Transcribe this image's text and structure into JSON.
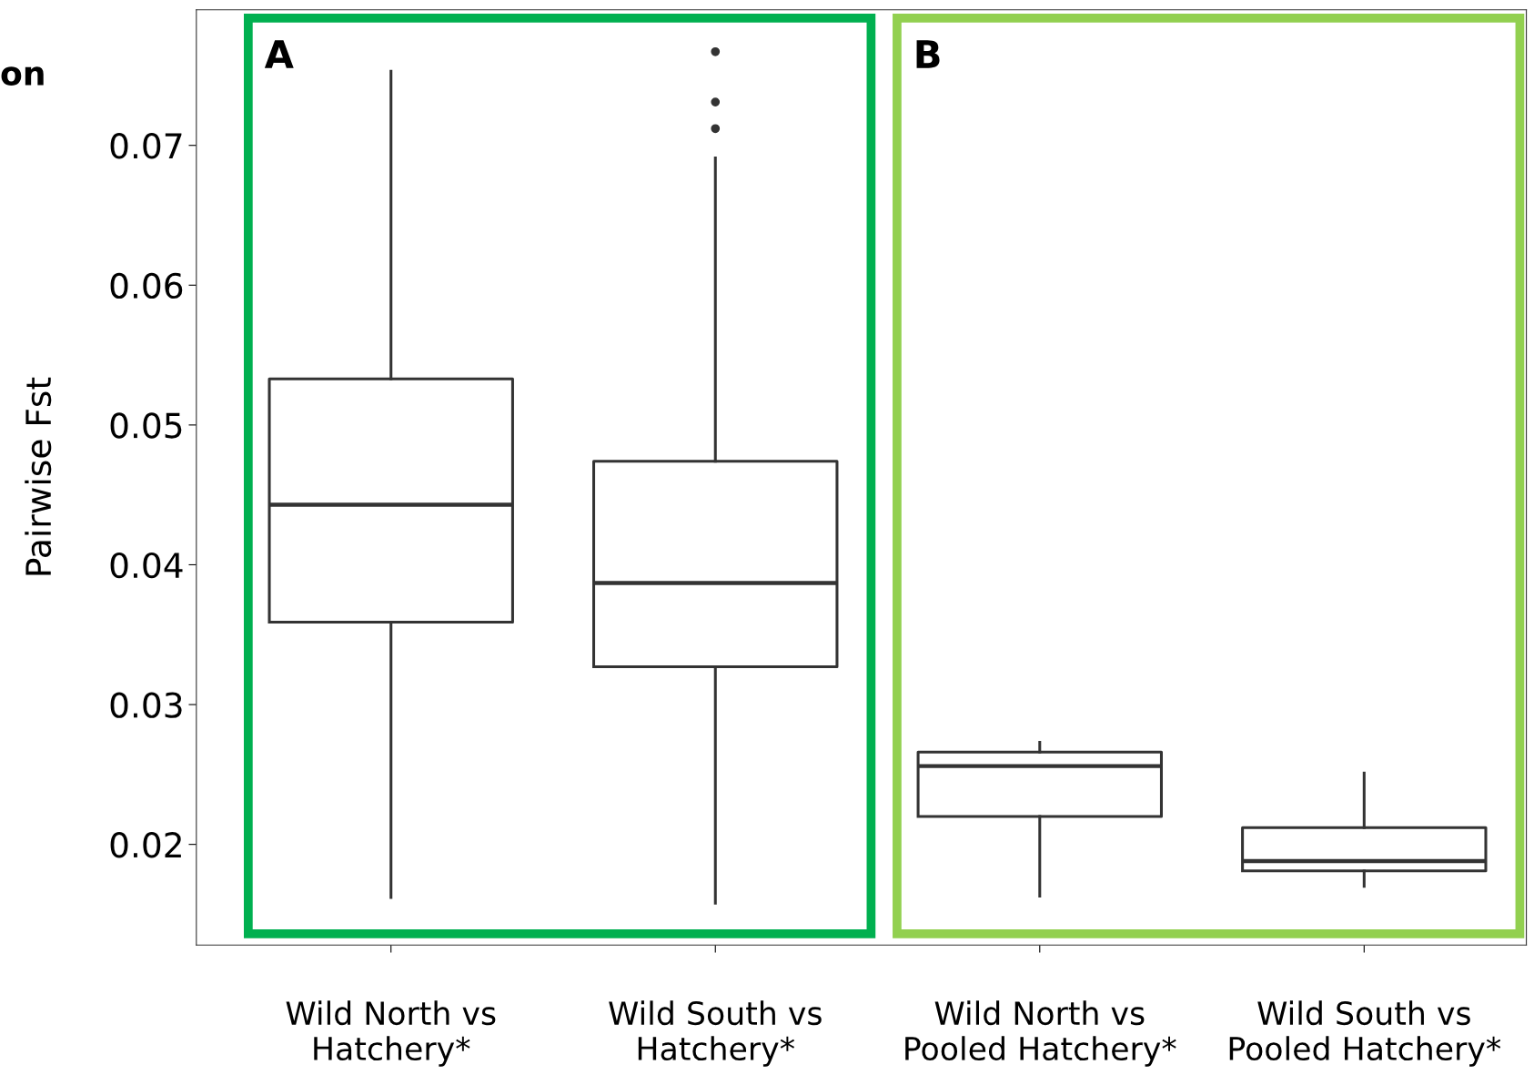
{
  "chart_data": {
    "type": "box",
    "ylabel": "Pairwise Fst",
    "categories": [
      "Wild North vs\nHatchery*",
      "Wild South vs\nHatchery*",
      "Wild North vs\nPooled Hatchery*",
      "Wild South vs\nPooled Hatchery*"
    ],
    "boxes": [
      {
        "low": 0.0162,
        "q1": 0.0359,
        "median": 0.0443,
        "q3": 0.0533,
        "high": 0.0753
      },
      {
        "low": 0.0158,
        "q1": 0.0327,
        "median": 0.0387,
        "q3": 0.0474,
        "high": 0.0691,
        "outliers": [
          0.0712,
          0.0731,
          0.0767
        ]
      },
      {
        "low": 0.0163,
        "q1": 0.022,
        "median": 0.0256,
        "q3": 0.0266,
        "high": 0.0273
      },
      {
        "low": 0.017,
        "q1": 0.0181,
        "median": 0.0188,
        "q3": 0.0212,
        "high": 0.0251
      }
    ],
    "ylim": [
      0.0128,
      0.0797
    ],
    "yticks": [
      {
        "value": 0.02,
        "label": "0.02"
      },
      {
        "value": 0.03,
        "label": "0.03"
      },
      {
        "value": 0.04,
        "label": "0.04"
      },
      {
        "value": 0.05,
        "label": "0.05"
      },
      {
        "value": 0.06,
        "label": "0.06"
      },
      {
        "value": 0.07,
        "label": "0.07"
      }
    ],
    "annotations": [
      "on",
      "A",
      "B"
    ],
    "grid": false,
    "legend": false
  }
}
